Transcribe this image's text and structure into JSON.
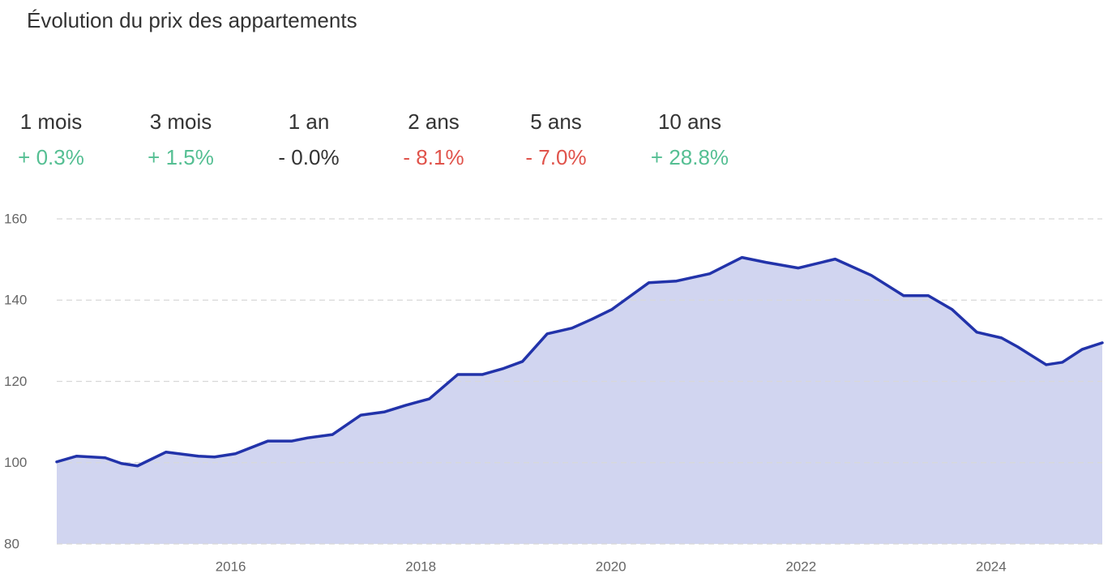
{
  "title": "Évolution du prix des appartements",
  "stats": [
    {
      "label": "1 mois",
      "value": "+ 0.3%",
      "color": "#55bf93"
    },
    {
      "label": "3 mois",
      "value": "+ 1.5%",
      "color": "#55bf93"
    },
    {
      "label": "1 an",
      "value": "- 0.0%",
      "color": "#333333"
    },
    {
      "label": "2 ans",
      "value": "- 8.1%",
      "color": "#e0534b"
    },
    {
      "label": "5 ans",
      "value": "- 7.0%",
      "color": "#e0534b"
    },
    {
      "label": "10 ans",
      "value": "+ 28.8%",
      "color": "#55bf93"
    }
  ],
  "chart_data": {
    "type": "area",
    "x": [
      2014.17,
      2014.38,
      2014.68,
      2014.85,
      2015.02,
      2015.32,
      2015.66,
      2015.83,
      2016.05,
      2016.39,
      2016.64,
      2016.81,
      2017.07,
      2017.37,
      2017.62,
      2017.84,
      2018.09,
      2018.39,
      2018.65,
      2018.86,
      2019.07,
      2019.33,
      2019.59,
      2019.8,
      2020.01,
      2020.4,
      2020.69,
      2021.04,
      2021.38,
      2021.63,
      2021.97,
      2022.36,
      2022.74,
      2023.08,
      2023.34,
      2023.59,
      2023.85,
      2024.11,
      2024.28,
      2024.58,
      2024.75,
      2024.96,
      2025.17
    ],
    "values": [
      100.2,
      101.6,
      101.2,
      99.8,
      99.2,
      102.6,
      101.6,
      101.4,
      102.2,
      105.3,
      105.3,
      106.1,
      106.9,
      111.7,
      112.5,
      114.1,
      115.7,
      121.7,
      121.7,
      123.1,
      124.9,
      131.7,
      133.1,
      135.3,
      137.7,
      144.3,
      144.7,
      146.5,
      150.5,
      149.3,
      147.9,
      150.1,
      146.1,
      141.1,
      141.1,
      137.7,
      132.1,
      130.7,
      128.5,
      124.1,
      124.7,
      127.9,
      129.5
    ],
    "color": "#2233aa",
    "fill": "#d1d5f0",
    "xlim": [
      2014.17,
      2025.17
    ],
    "xticks": [
      2016,
      2018,
      2020,
      2022,
      2024
    ],
    "ylim": [
      80,
      160
    ],
    "yticks": [
      80,
      100,
      120,
      140,
      160
    ],
    "grid": true
  }
}
